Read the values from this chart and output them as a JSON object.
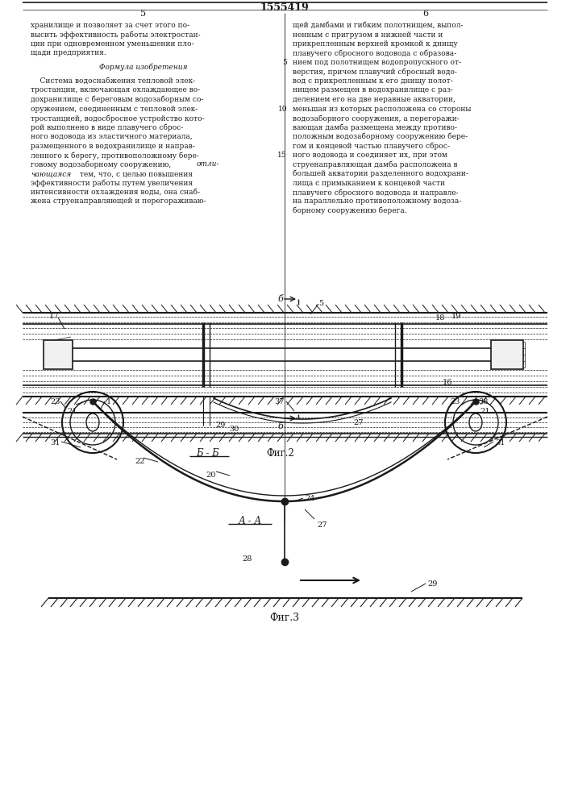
{
  "title": "1555419",
  "fig_width": 7.07,
  "fig_height": 10.0,
  "dpi": 100,
  "bg_color": "#ffffff",
  "text_color": "#1a1a1a",
  "line_color": "#1a1a1a",
  "left_col_text": [
    "хранилище и позволяет за счет этого по-",
    "высить эффективность работы электростан-",
    "ции при одновременном уменьшении пло-",
    "щади предприятия.",
    "",
    "Формула изобретения",
    "",
    "    Система водоснабжения тепловой элек-",
    "тростанции, включающая охлаждающее во-",
    "дохранилище с береговым водозаборным со-",
    "оружением, соединенным с тепловой элек-",
    "тростанцией, водосбросное устройство кото-",
    "рой выполнено в виде плавучего сброс-",
    "ного водовода из эластичного материала,",
    "размещенного в водохранилище и направ-",
    "ленного к берегу, противоположному бере-",
    "говому водозаборному сооружению, отли-",
    "чающаяся тем, что, с целью повышения",
    "эффективности работы путем увеличения",
    "интенсивности охлаждения воды, она снаб-",
    "жена струенаправляющей и перегораживаю-"
  ],
  "right_col_text": [
    "щей дамбами и гибким полотнищем, выпол-",
    "ненным с пригрузом в нижней части и",
    "прикрепленным верхней кромкой к днищу",
    "плавучего сбросного водовода с образова-",
    "нием под полотнищем водопропускного от-",
    "верстия, причем плавучий сбросный водо-",
    "вод с прикрепленным к его днищу полот-",
    "нищем размещен в водохранилище с раз-",
    "делением его на две неравные акватории,",
    "меньшая из которых расположена со стороны",
    "водозаборного сооружения, а перегоражи-",
    "вающая дамба размещена между противо-",
    "положным водозаборному сооружению бере-",
    "гом и концевой частью плавучего сброс-",
    "ного водовода и соединяет их, при этом",
    "струенаправляющая дамба расположена в",
    "большей акватории разделенного водохрани-",
    "лища с примыканием к концевой части",
    "плавучего сбросного водовода и направле-",
    "на параллельно противоположному водоза-",
    "борному сооружению берега."
  ]
}
